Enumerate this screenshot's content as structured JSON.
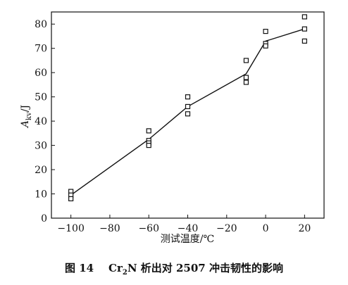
{
  "chart_data": {
    "type": "scatter",
    "xlabel": "测试温度/℃",
    "ylabel_main": "A",
    "ylabel_sub": "kv",
    "ylabel_unit": "/J",
    "xlim": [
      -110,
      30
    ],
    "ylim": [
      0,
      85
    ],
    "xticks": [
      -100,
      -80,
      -60,
      -40,
      -20,
      0,
      20
    ],
    "xtick_labels": [
      "−100",
      "−80",
      "−60",
      "−40",
      "−20",
      "0",
      "20"
    ],
    "yticks": [
      0,
      10,
      20,
      30,
      40,
      50,
      60,
      70,
      80
    ],
    "series": [
      {
        "marker": "open-square",
        "points": [
          {
            "x": -100,
            "y": 11
          },
          {
            "x": -100,
            "y": 9.5
          },
          {
            "x": -100,
            "y": 8
          },
          {
            "x": -60,
            "y": 36
          },
          {
            "x": -60,
            "y": 32
          },
          {
            "x": -60,
            "y": 31
          },
          {
            "x": -60,
            "y": 30
          },
          {
            "x": -40,
            "y": 50
          },
          {
            "x": -40,
            "y": 46
          },
          {
            "x": -40,
            "y": 43
          },
          {
            "x": -10,
            "y": 65
          },
          {
            "x": -10,
            "y": 58
          },
          {
            "x": -10,
            "y": 56
          },
          {
            "x": 0,
            "y": 77
          },
          {
            "x": 0,
            "y": 72
          },
          {
            "x": 0,
            "y": 71
          },
          {
            "x": 20,
            "y": 83
          },
          {
            "x": 20,
            "y": 78
          },
          {
            "x": 20,
            "y": 73
          }
        ]
      },
      {
        "style": "line",
        "points": [
          {
            "x": -100,
            "y": 9.5
          },
          {
            "x": -60,
            "y": 32.5
          },
          {
            "x": -40,
            "y": 46
          },
          {
            "x": -10,
            "y": 59.5
          },
          {
            "x": 0,
            "y": 73
          },
          {
            "x": 20,
            "y": 78
          }
        ]
      }
    ]
  },
  "caption": {
    "prefix": "图 14",
    "cr": "Cr",
    "sub": "2",
    "rest": "N 析出对 2507 冲击韧性的影响"
  }
}
